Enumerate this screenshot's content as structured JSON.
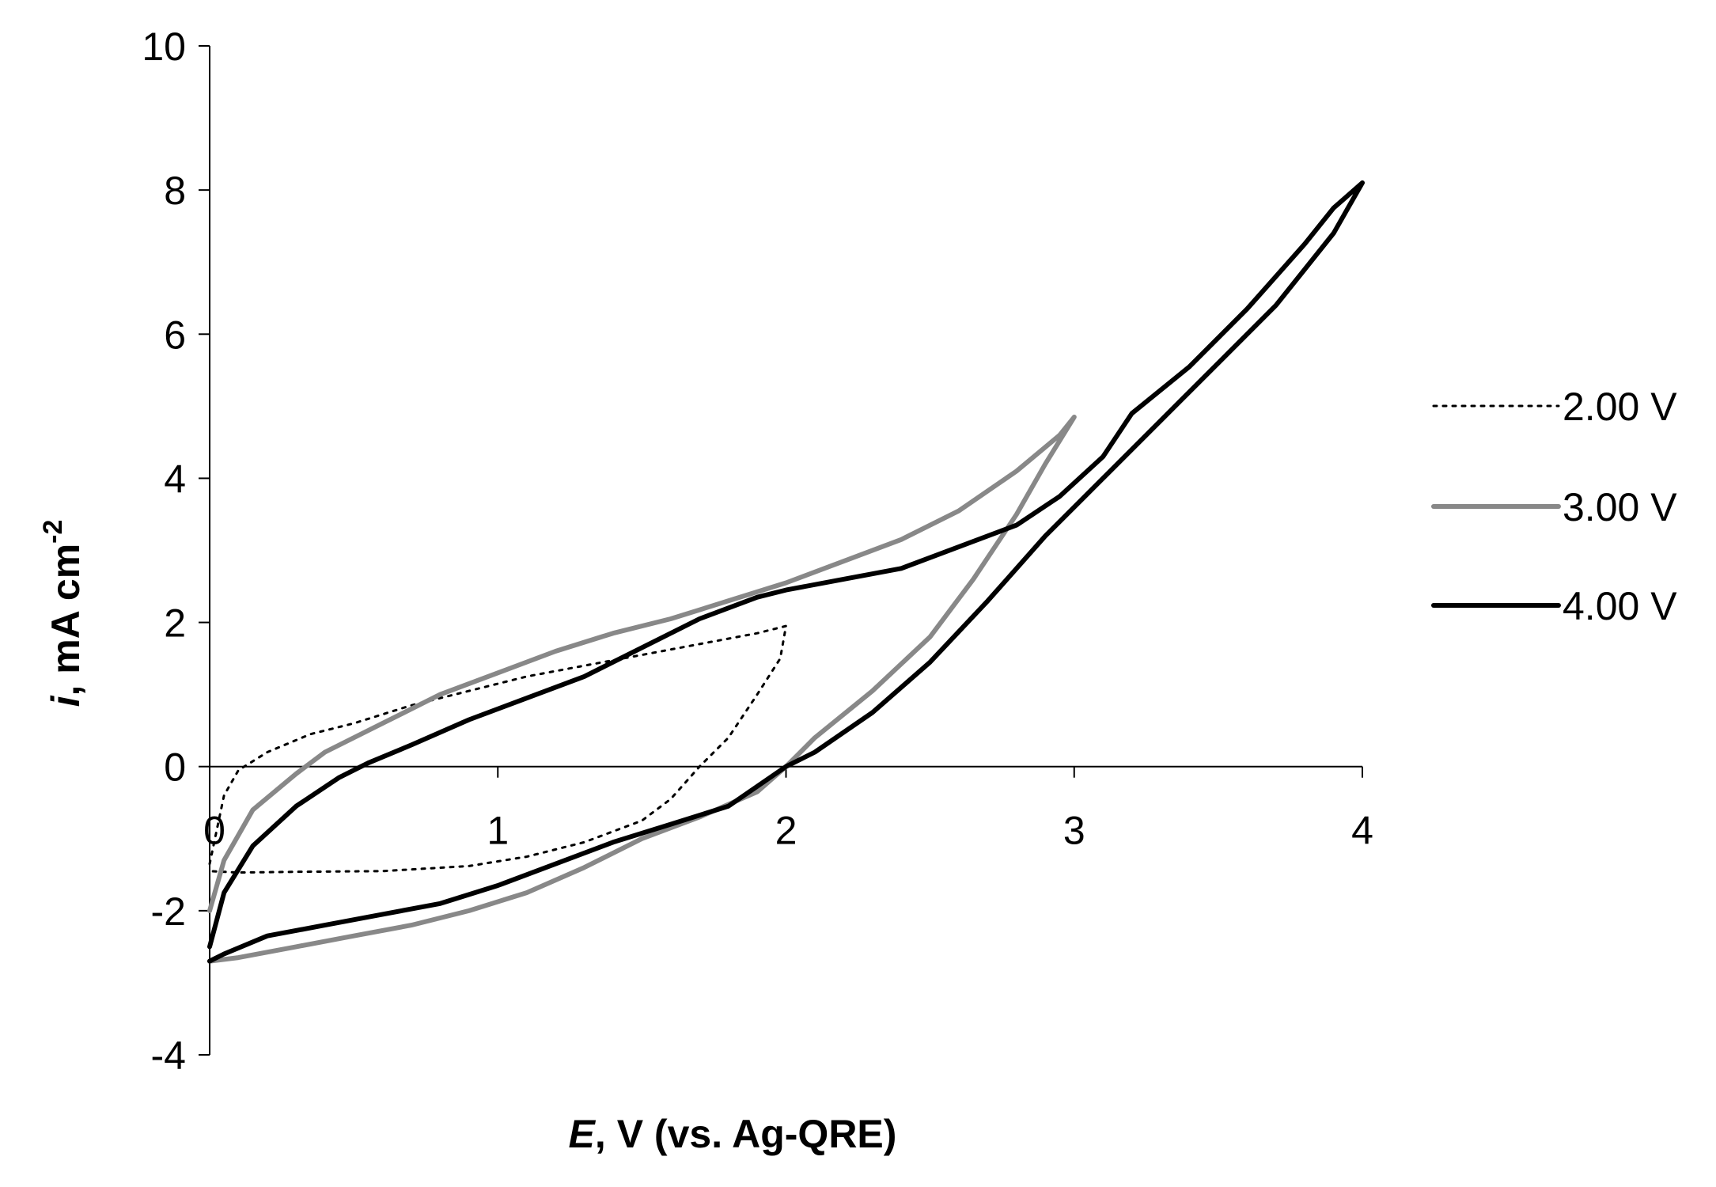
{
  "chart_data": {
    "type": "line",
    "xlabel": {
      "italic": "E",
      "rest": ", V (vs. Ag-QRE)"
    },
    "ylabel": {
      "italic": "i",
      "rest": ", mA cm",
      "sup": "-2"
    },
    "xlim": [
      0,
      4
    ],
    "ylim": [
      -4,
      10
    ],
    "x_ticks": [
      "0",
      "1",
      "2",
      "3",
      "4"
    ],
    "y_ticks": [
      "-4",
      "-2",
      "0",
      "2",
      "4",
      "6",
      "8",
      "10"
    ],
    "grid": false,
    "legend_position": "right",
    "series": [
      {
        "name": "2.00 V",
        "color": "#000000",
        "style": "dotted",
        "points": [
          [
            0.0,
            -1.35
          ],
          [
            0.05,
            -0.4
          ],
          [
            0.1,
            -0.05
          ],
          [
            0.2,
            0.2
          ],
          [
            0.35,
            0.45
          ],
          [
            0.5,
            0.6
          ],
          [
            0.7,
            0.85
          ],
          [
            0.9,
            1.05
          ],
          [
            1.1,
            1.25
          ],
          [
            1.3,
            1.4
          ],
          [
            1.5,
            1.55
          ],
          [
            1.7,
            1.7
          ],
          [
            1.9,
            1.85
          ],
          [
            2.0,
            1.95
          ],
          [
            1.98,
            1.5
          ],
          [
            1.9,
            1.0
          ],
          [
            1.8,
            0.4
          ],
          [
            1.7,
            0.0
          ],
          [
            1.6,
            -0.45
          ],
          [
            1.5,
            -0.75
          ],
          [
            1.3,
            -1.05
          ],
          [
            1.1,
            -1.25
          ],
          [
            0.9,
            -1.38
          ],
          [
            0.6,
            -1.45
          ],
          [
            0.3,
            -1.46
          ],
          [
            0.1,
            -1.47
          ],
          [
            0.0,
            -1.45
          ]
        ]
      },
      {
        "name": "3.00 V",
        "color": "#888888",
        "style": "solid",
        "points": [
          [
            0.0,
            -2.0
          ],
          [
            0.05,
            -1.3
          ],
          [
            0.15,
            -0.6
          ],
          [
            0.3,
            -0.1
          ],
          [
            0.4,
            0.2
          ],
          [
            0.6,
            0.6
          ],
          [
            0.8,
            1.0
          ],
          [
            1.0,
            1.3
          ],
          [
            1.2,
            1.6
          ],
          [
            1.4,
            1.85
          ],
          [
            1.6,
            2.05
          ],
          [
            1.8,
            2.3
          ],
          [
            2.0,
            2.55
          ],
          [
            2.2,
            2.85
          ],
          [
            2.4,
            3.15
          ],
          [
            2.6,
            3.55
          ],
          [
            2.8,
            4.1
          ],
          [
            2.95,
            4.6
          ],
          [
            3.0,
            4.85
          ],
          [
            2.9,
            4.2
          ],
          [
            2.8,
            3.5
          ],
          [
            2.65,
            2.6
          ],
          [
            2.5,
            1.8
          ],
          [
            2.3,
            1.05
          ],
          [
            2.1,
            0.4
          ],
          [
            2.0,
            0.0
          ],
          [
            1.9,
            -0.35
          ],
          [
            1.7,
            -0.7
          ],
          [
            1.5,
            -1.0
          ],
          [
            1.3,
            -1.4
          ],
          [
            1.1,
            -1.75
          ],
          [
            0.9,
            -2.0
          ],
          [
            0.7,
            -2.2
          ],
          [
            0.5,
            -2.35
          ],
          [
            0.3,
            -2.5
          ],
          [
            0.1,
            -2.65
          ],
          [
            0.0,
            -2.7
          ]
        ]
      },
      {
        "name": "4.00 V",
        "color": "#000000",
        "style": "solid",
        "points": [
          [
            0.0,
            -2.5
          ],
          [
            0.05,
            -1.75
          ],
          [
            0.15,
            -1.1
          ],
          [
            0.3,
            -0.55
          ],
          [
            0.45,
            -0.15
          ],
          [
            0.55,
            0.05
          ],
          [
            0.7,
            0.3
          ],
          [
            0.9,
            0.65
          ],
          [
            1.1,
            0.95
          ],
          [
            1.3,
            1.25
          ],
          [
            1.5,
            1.65
          ],
          [
            1.7,
            2.05
          ],
          [
            1.9,
            2.35
          ],
          [
            2.0,
            2.45
          ],
          [
            2.2,
            2.6
          ],
          [
            2.4,
            2.75
          ],
          [
            2.6,
            3.05
          ],
          [
            2.8,
            3.35
          ],
          [
            2.95,
            3.75
          ],
          [
            3.1,
            4.3
          ],
          [
            3.2,
            4.9
          ],
          [
            3.4,
            5.55
          ],
          [
            3.6,
            6.35
          ],
          [
            3.8,
            7.25
          ],
          [
            3.9,
            7.75
          ],
          [
            4.0,
            8.1
          ],
          [
            3.9,
            7.4
          ],
          [
            3.7,
            6.4
          ],
          [
            3.5,
            5.6
          ],
          [
            3.3,
            4.8
          ],
          [
            3.1,
            4.0
          ],
          [
            2.9,
            3.2
          ],
          [
            2.7,
            2.3
          ],
          [
            2.5,
            1.45
          ],
          [
            2.3,
            0.75
          ],
          [
            2.1,
            0.2
          ],
          [
            2.0,
            0.0
          ],
          [
            1.8,
            -0.55
          ],
          [
            1.6,
            -0.8
          ],
          [
            1.4,
            -1.05
          ],
          [
            1.2,
            -1.35
          ],
          [
            1.0,
            -1.65
          ],
          [
            0.8,
            -1.9
          ],
          [
            0.6,
            -2.05
          ],
          [
            0.4,
            -2.2
          ],
          [
            0.2,
            -2.35
          ],
          [
            0.05,
            -2.6
          ],
          [
            0.0,
            -2.7
          ]
        ]
      }
    ]
  }
}
